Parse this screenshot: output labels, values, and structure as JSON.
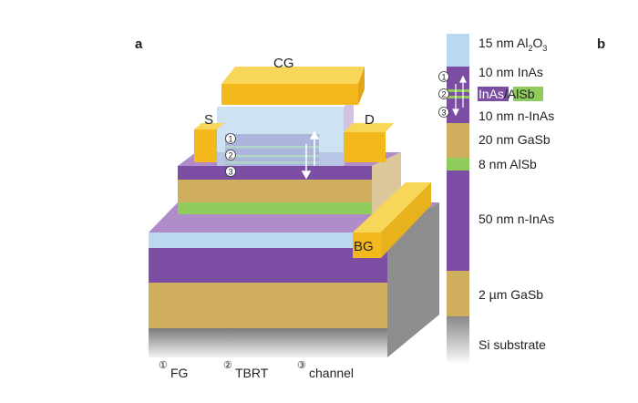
{
  "panel_a": {
    "label": "a",
    "contacts": {
      "cg": "CG",
      "s": "S",
      "d": "D",
      "bg": "BG"
    },
    "markers": [
      "①",
      "②",
      "③"
    ],
    "legend": [
      {
        "marker": "①",
        "text": "FG"
      },
      {
        "marker": "②",
        "text": "TBRT"
      },
      {
        "marker": "③",
        "text": "channel"
      }
    ]
  },
  "panel_b": {
    "label": "b",
    "layers": [
      {
        "prefix": "15 nm Al",
        "sub1": "2",
        "mid": "O",
        "sub2": "3"
      },
      {
        "text": "10 nm InAs"
      },
      {
        "inas": "InAs",
        "slash": "/",
        "alsb": "AlSb"
      },
      {
        "text": "10 nm n-InAs"
      },
      {
        "text": "20 nm GaSb"
      },
      {
        "text": "8 nm AlSb"
      },
      {
        "text": "50 nm n-InAs"
      },
      {
        "text": "2 µm GaSb"
      },
      {
        "text": "Si substrate"
      }
    ],
    "markers": [
      "①",
      "②",
      "③"
    ]
  },
  "colors": {
    "inas": "#7b4ea3",
    "inas_light": "#b08dc9",
    "gasb": "#cfae5d",
    "alsb": "#8fcc5c",
    "al2o3": "#bcd8ee",
    "metal": "#f2b81c",
    "metal_top": "#f7d65a",
    "substrate": "#8a8a8a"
  }
}
